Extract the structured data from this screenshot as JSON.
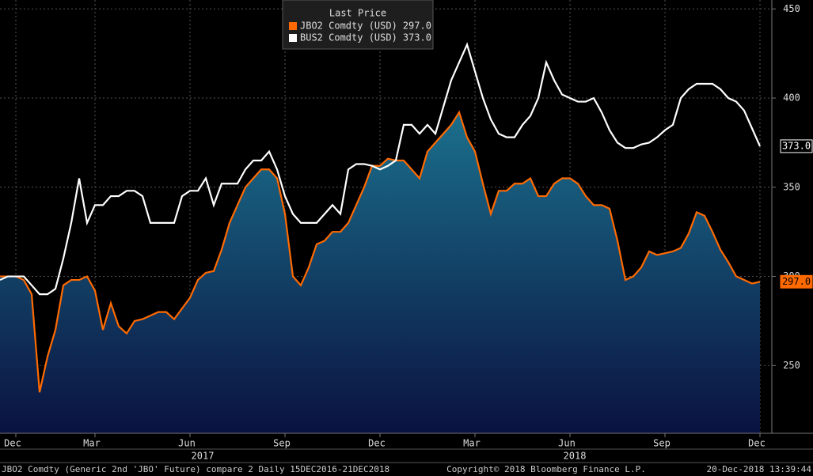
{
  "chart_data": {
    "type": "line",
    "legend_title": "Last Price",
    "categories": [
      null,
      null,
      "Dec",
      null,
      null,
      null,
      null,
      null,
      null,
      null,
      null,
      null,
      "Mar",
      null,
      null,
      null,
      null,
      null,
      null,
      null,
      null,
      null,
      null,
      null,
      "Jun",
      null,
      null,
      null,
      null,
      null,
      null,
      null,
      null,
      null,
      null,
      null,
      "Sep",
      null,
      null,
      null,
      null,
      null,
      null,
      null,
      null,
      null,
      null,
      null,
      "Dec",
      null,
      null,
      null,
      null,
      null,
      null,
      null,
      null,
      null,
      null,
      null,
      "Mar",
      null,
      null,
      null,
      null,
      null,
      null,
      null,
      null,
      null,
      null,
      null,
      "Jun",
      null,
      null,
      null,
      null,
      null,
      null,
      null,
      null,
      null,
      null,
      null,
      "Sep",
      null,
      null,
      null,
      null,
      null,
      null,
      null,
      null,
      null,
      null,
      null,
      "Dec"
    ],
    "year_labels": [
      null,
      null,
      null,
      null,
      null,
      null,
      null,
      null,
      null,
      null,
      null,
      null,
      null,
      null,
      null,
      null,
      null,
      null,
      null,
      null,
      null,
      null,
      null,
      null,
      null,
      null,
      "2017",
      null,
      null,
      null,
      null,
      null,
      null,
      null,
      null,
      null,
      null,
      null,
      null,
      null,
      null,
      null,
      null,
      null,
      null,
      null,
      null,
      null,
      null,
      null,
      null,
      null,
      null,
      null,
      null,
      null,
      null,
      null,
      null,
      null,
      null,
      null,
      null,
      null,
      null,
      null,
      null,
      null,
      null,
      null,
      null,
      null,
      null,
      "2018",
      null,
      null,
      null,
      null,
      null,
      null,
      null,
      null,
      null,
      null,
      null,
      null,
      null,
      null,
      null,
      null,
      null,
      null,
      null,
      null,
      null,
      null,
      null
    ],
    "series": [
      {
        "name": "JBO2 Comdty (USD)",
        "color": "#ff6a00",
        "last_label": "297.0",
        "area": true,
        "values": [
          300,
          300,
          300,
          298,
          290,
          235,
          255,
          270,
          295,
          298,
          298,
          300,
          292,
          270,
          285,
          272,
          268,
          275,
          276,
          278,
          280,
          280,
          276,
          282,
          288,
          298,
          302,
          303,
          315,
          330,
          340,
          350,
          355,
          360,
          360,
          355,
          335,
          300,
          295,
          305,
          318,
          320,
          325,
          325,
          330,
          340,
          350,
          362,
          362,
          366,
          365,
          365,
          360,
          355,
          370,
          375,
          380,
          385,
          392,
          378,
          370,
          352,
          335,
          348,
          348,
          352,
          352,
          355,
          345,
          345,
          352,
          355,
          355,
          352,
          345,
          340,
          340,
          338,
          320,
          298,
          300,
          305,
          314,
          312,
          313,
          314,
          316,
          324,
          336,
          334,
          325,
          315,
          308,
          300,
          298,
          296,
          297
        ]
      },
      {
        "name": "BUS2 Comdty (USD)",
        "color": "#ffffff",
        "last_label": "373.0",
        "area": false,
        "values": [
          298,
          300,
          300,
          300,
          295,
          290,
          290,
          293,
          310,
          330,
          355,
          330,
          340,
          340,
          345,
          345,
          348,
          348,
          345,
          330,
          330,
          330,
          330,
          345,
          348,
          348,
          355,
          340,
          352,
          352,
          352,
          360,
          365,
          365,
          370,
          360,
          345,
          335,
          330,
          330,
          330,
          335,
          340,
          335,
          360,
          363,
          363,
          362,
          360,
          362,
          365,
          385,
          385,
          380,
          385,
          380,
          395,
          410,
          420,
          430,
          415,
          400,
          388,
          380,
          378,
          378,
          385,
          390,
          400,
          420,
          410,
          402,
          400,
          398,
          398,
          400,
          392,
          382,
          375,
          372,
          372,
          374,
          375,
          378,
          382,
          385,
          400,
          405,
          408,
          408,
          408,
          405,
          400,
          398,
          393,
          383,
          373
        ]
      }
    ],
    "ylim": [
      212,
      455
    ],
    "yticks": [
      250,
      300,
      350,
      400,
      450
    ],
    "grid": true,
    "footer_left": "JBO2 Comdty (Generic 2nd 'JBO' Future) compare 2  Daily 15DEC2016-21DEC2018",
    "footer_center": "Copyright© 2018 Bloomberg Finance L.P.",
    "footer_right": "20-Dec-2018 13:39:44"
  }
}
